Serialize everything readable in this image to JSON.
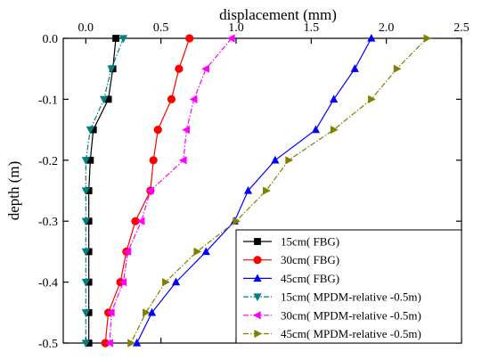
{
  "chart_data": {
    "type": "line",
    "xlabel": "displacement (mm)",
    "ylabel": "depth (m)",
    "xlim": [
      -0.15,
      2.5
    ],
    "ylim": [
      -0.5,
      0.0
    ],
    "x_ticks": [
      "0.0",
      "0.5",
      "1.0",
      "1.5",
      "2.0",
      "2.5"
    ],
    "x_tick_values": [
      0.0,
      0.5,
      1.0,
      1.5,
      2.0,
      2.5
    ],
    "y_ticks": [
      "0.0",
      "-0.1",
      "-0.2",
      "-0.3",
      "-0.4",
      "-0.5"
    ],
    "y_tick_values": [
      0.0,
      -0.1,
      -0.2,
      -0.3,
      -0.4,
      -0.5
    ],
    "x_axis_position": "top",
    "legend_position": "bottom-right",
    "grid": false,
    "series": [
      {
        "name": "15cm(  FBG)",
        "color": "#000000",
        "marker": "square",
        "line_style": "solid",
        "x": [
          0.2,
          0.18,
          0.15,
          0.05,
          0.03,
          0.02,
          0.02,
          0.02,
          0.02,
          0.02,
          0.02
        ],
        "y": [
          0.0,
          -0.05,
          -0.1,
          -0.15,
          -0.2,
          -0.25,
          -0.3,
          -0.35,
          -0.4,
          -0.45,
          -0.5
        ]
      },
      {
        "name": "30cm(  FBG)",
        "color": "#ff0000",
        "marker": "circle",
        "line_style": "solid",
        "x": [
          0.69,
          0.62,
          0.57,
          0.48,
          0.45,
          0.43,
          0.33,
          0.27,
          0.23,
          0.15,
          0.13
        ],
        "y": [
          0.0,
          -0.05,
          -0.1,
          -0.15,
          -0.2,
          -0.25,
          -0.3,
          -0.35,
          -0.4,
          -0.45,
          -0.5
        ]
      },
      {
        "name": "45cm(  FBG)",
        "color": "#0000ff",
        "marker": "triangle-up",
        "line_style": "solid",
        "x": [
          1.9,
          1.79,
          1.65,
          1.53,
          1.26,
          1.08,
          0.99,
          0.8,
          0.6,
          0.44,
          0.34
        ],
        "y": [
          0.0,
          -0.05,
          -0.1,
          -0.15,
          -0.2,
          -0.25,
          -0.3,
          -0.35,
          -0.4,
          -0.45,
          -0.5
        ]
      },
      {
        "name": "15cm(  MPDM-relative -0.5m)",
        "color": "#008080",
        "marker": "triangle-down",
        "line_style": "dash-dot",
        "x": [
          0.25,
          0.17,
          0.12,
          0.03,
          0.0,
          0.0,
          0.0,
          0.0,
          0.0,
          0.0,
          0.0
        ],
        "y": [
          0.0,
          -0.05,
          -0.1,
          -0.15,
          -0.2,
          -0.25,
          -0.3,
          -0.35,
          -0.4,
          -0.45,
          -0.5
        ]
      },
      {
        "name": "30cm(  MPDM-relative -0.5m)",
        "color": "#ff00ff",
        "marker": "triangle-left",
        "line_style": "dash-dot",
        "x": [
          0.97,
          0.8,
          0.72,
          0.67,
          0.65,
          0.43,
          0.37,
          0.28,
          0.25,
          0.17,
          0.16
        ],
        "y": [
          0.0,
          -0.05,
          -0.1,
          -0.15,
          -0.2,
          -0.25,
          -0.3,
          -0.35,
          -0.4,
          -0.45,
          -0.5
        ]
      },
      {
        "name": "45cm(  MPDM-relative -0.5m)",
        "color": "#808000",
        "marker": "triangle-right",
        "line_style": "dash-dot",
        "x": [
          2.27,
          2.07,
          1.9,
          1.65,
          1.35,
          1.2,
          1.0,
          0.74,
          0.53,
          0.4,
          0.3
        ],
        "y": [
          0.0,
          -0.05,
          -0.1,
          -0.15,
          -0.2,
          -0.25,
          -0.3,
          -0.35,
          -0.4,
          -0.45,
          -0.5
        ]
      }
    ]
  }
}
